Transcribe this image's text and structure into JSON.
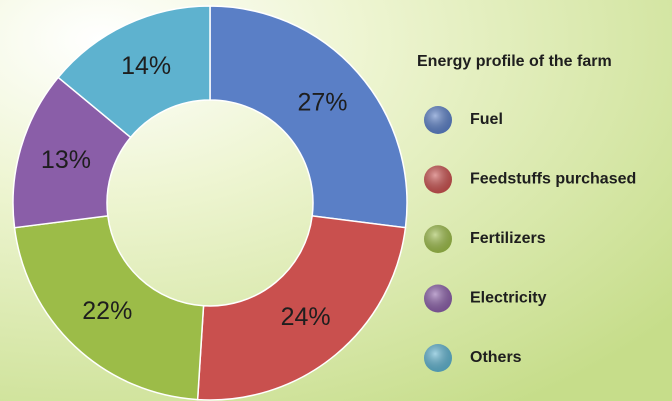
{
  "chart_data": {
    "type": "donut",
    "title": "Energy profile of the farm",
    "categories": [
      "Fuel",
      "Feedstuffs purchased",
      "Fertilizers",
      "Electricity",
      "Others"
    ],
    "values": [
      27,
      24,
      22,
      13,
      14
    ],
    "value_labels": [
      "27%",
      "24%",
      "22%",
      "13%",
      "14%"
    ],
    "colors": [
      "#5a7fc6",
      "#c9504e",
      "#9cbc48",
      "#8a5ea8",
      "#5eb2cf"
    ]
  }
}
